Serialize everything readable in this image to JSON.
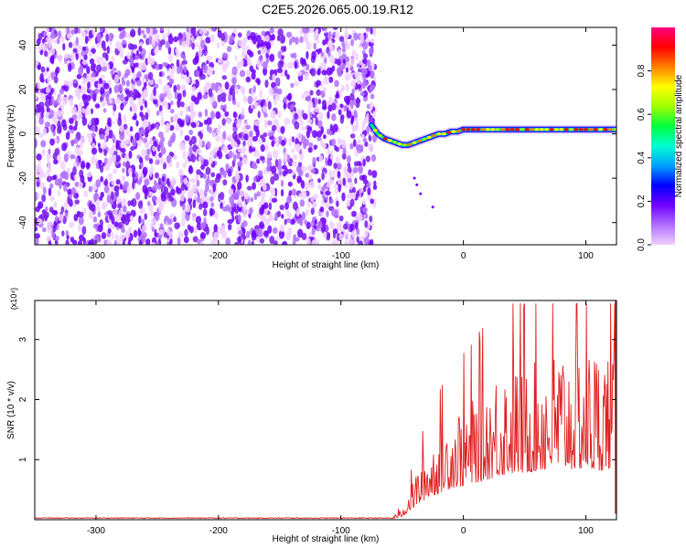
{
  "title": "C2E5.2026.065.00.19.R12",
  "colors": {
    "spectrogram_noise": "#7a1ee6",
    "snr_line": "#e02020",
    "colormap": [
      "#f0d0ff",
      "#b070ff",
      "#7000ff",
      "#0000ff",
      "#00a0ff",
      "#00ffd0",
      "#00ff40",
      "#a0ff00",
      "#ffff00",
      "#ff8000",
      "#ff0000",
      "#ff0080"
    ]
  },
  "chart_data": [
    {
      "type": "heatmap",
      "xlabel": "Height of straight line (km)",
      "ylabel": "Frequency (Hz)",
      "xlim": [
        -350,
        125
      ],
      "ylim": [
        -50,
        48
      ],
      "xticks": [
        -300,
        -200,
        -100,
        0,
        100
      ],
      "yticks": [
        -40,
        -20,
        0,
        20,
        40
      ],
      "grid": false,
      "colorbar": {
        "label": "Normalized spectral amplitude",
        "range": [
          0,
          1
        ],
        "ticks": [
          0.0,
          0.2,
          0.4,
          0.6,
          0.8
        ]
      },
      "noise_region_x": [
        -350,
        -72
      ],
      "signal_trace": {
        "x": [
          -75,
          -70,
          -65,
          -60,
          -55,
          -50,
          -45,
          -40,
          -35,
          -30,
          -25,
          -20,
          -15,
          -10,
          -5,
          0,
          10,
          20,
          30,
          40,
          50,
          60,
          70,
          80,
          90,
          100,
          110,
          125
        ],
        "y": [
          4,
          0,
          -2,
          -3,
          -4,
          -5,
          -5,
          -4,
          -3,
          -2,
          -1,
          0,
          0,
          1,
          1,
          2,
          2,
          2,
          2,
          2,
          2,
          2,
          2,
          2,
          2,
          2,
          2,
          2
        ]
      }
    },
    {
      "type": "line",
      "xlabel": "Height of straight line (km)",
      "ylabel": "SNR (10 * v/v)",
      "y_multiplier": "(x10⁴)",
      "xlim": [
        -350,
        125
      ],
      "ylim": [
        0,
        3.65
      ],
      "xticks": [
        -300,
        -200,
        -100,
        0,
        100
      ],
      "yticks": [
        1,
        2,
        3
      ],
      "grid": false,
      "envelope": {
        "x": [
          -350,
          -60,
          -50,
          -40,
          -30,
          -20,
          -10,
          0,
          10,
          20,
          30,
          40,
          50,
          60,
          70,
          80,
          90,
          100,
          110,
          125
        ],
        "y": [
          0.02,
          0.02,
          0.15,
          0.6,
          1.0,
          1.25,
          1.5,
          1.6,
          1.75,
          1.9,
          2.1,
          2.2,
          2.2,
          2.3,
          2.4,
          2.4,
          2.4,
          2.4,
          2.3,
          2.5
        ]
      }
    }
  ]
}
